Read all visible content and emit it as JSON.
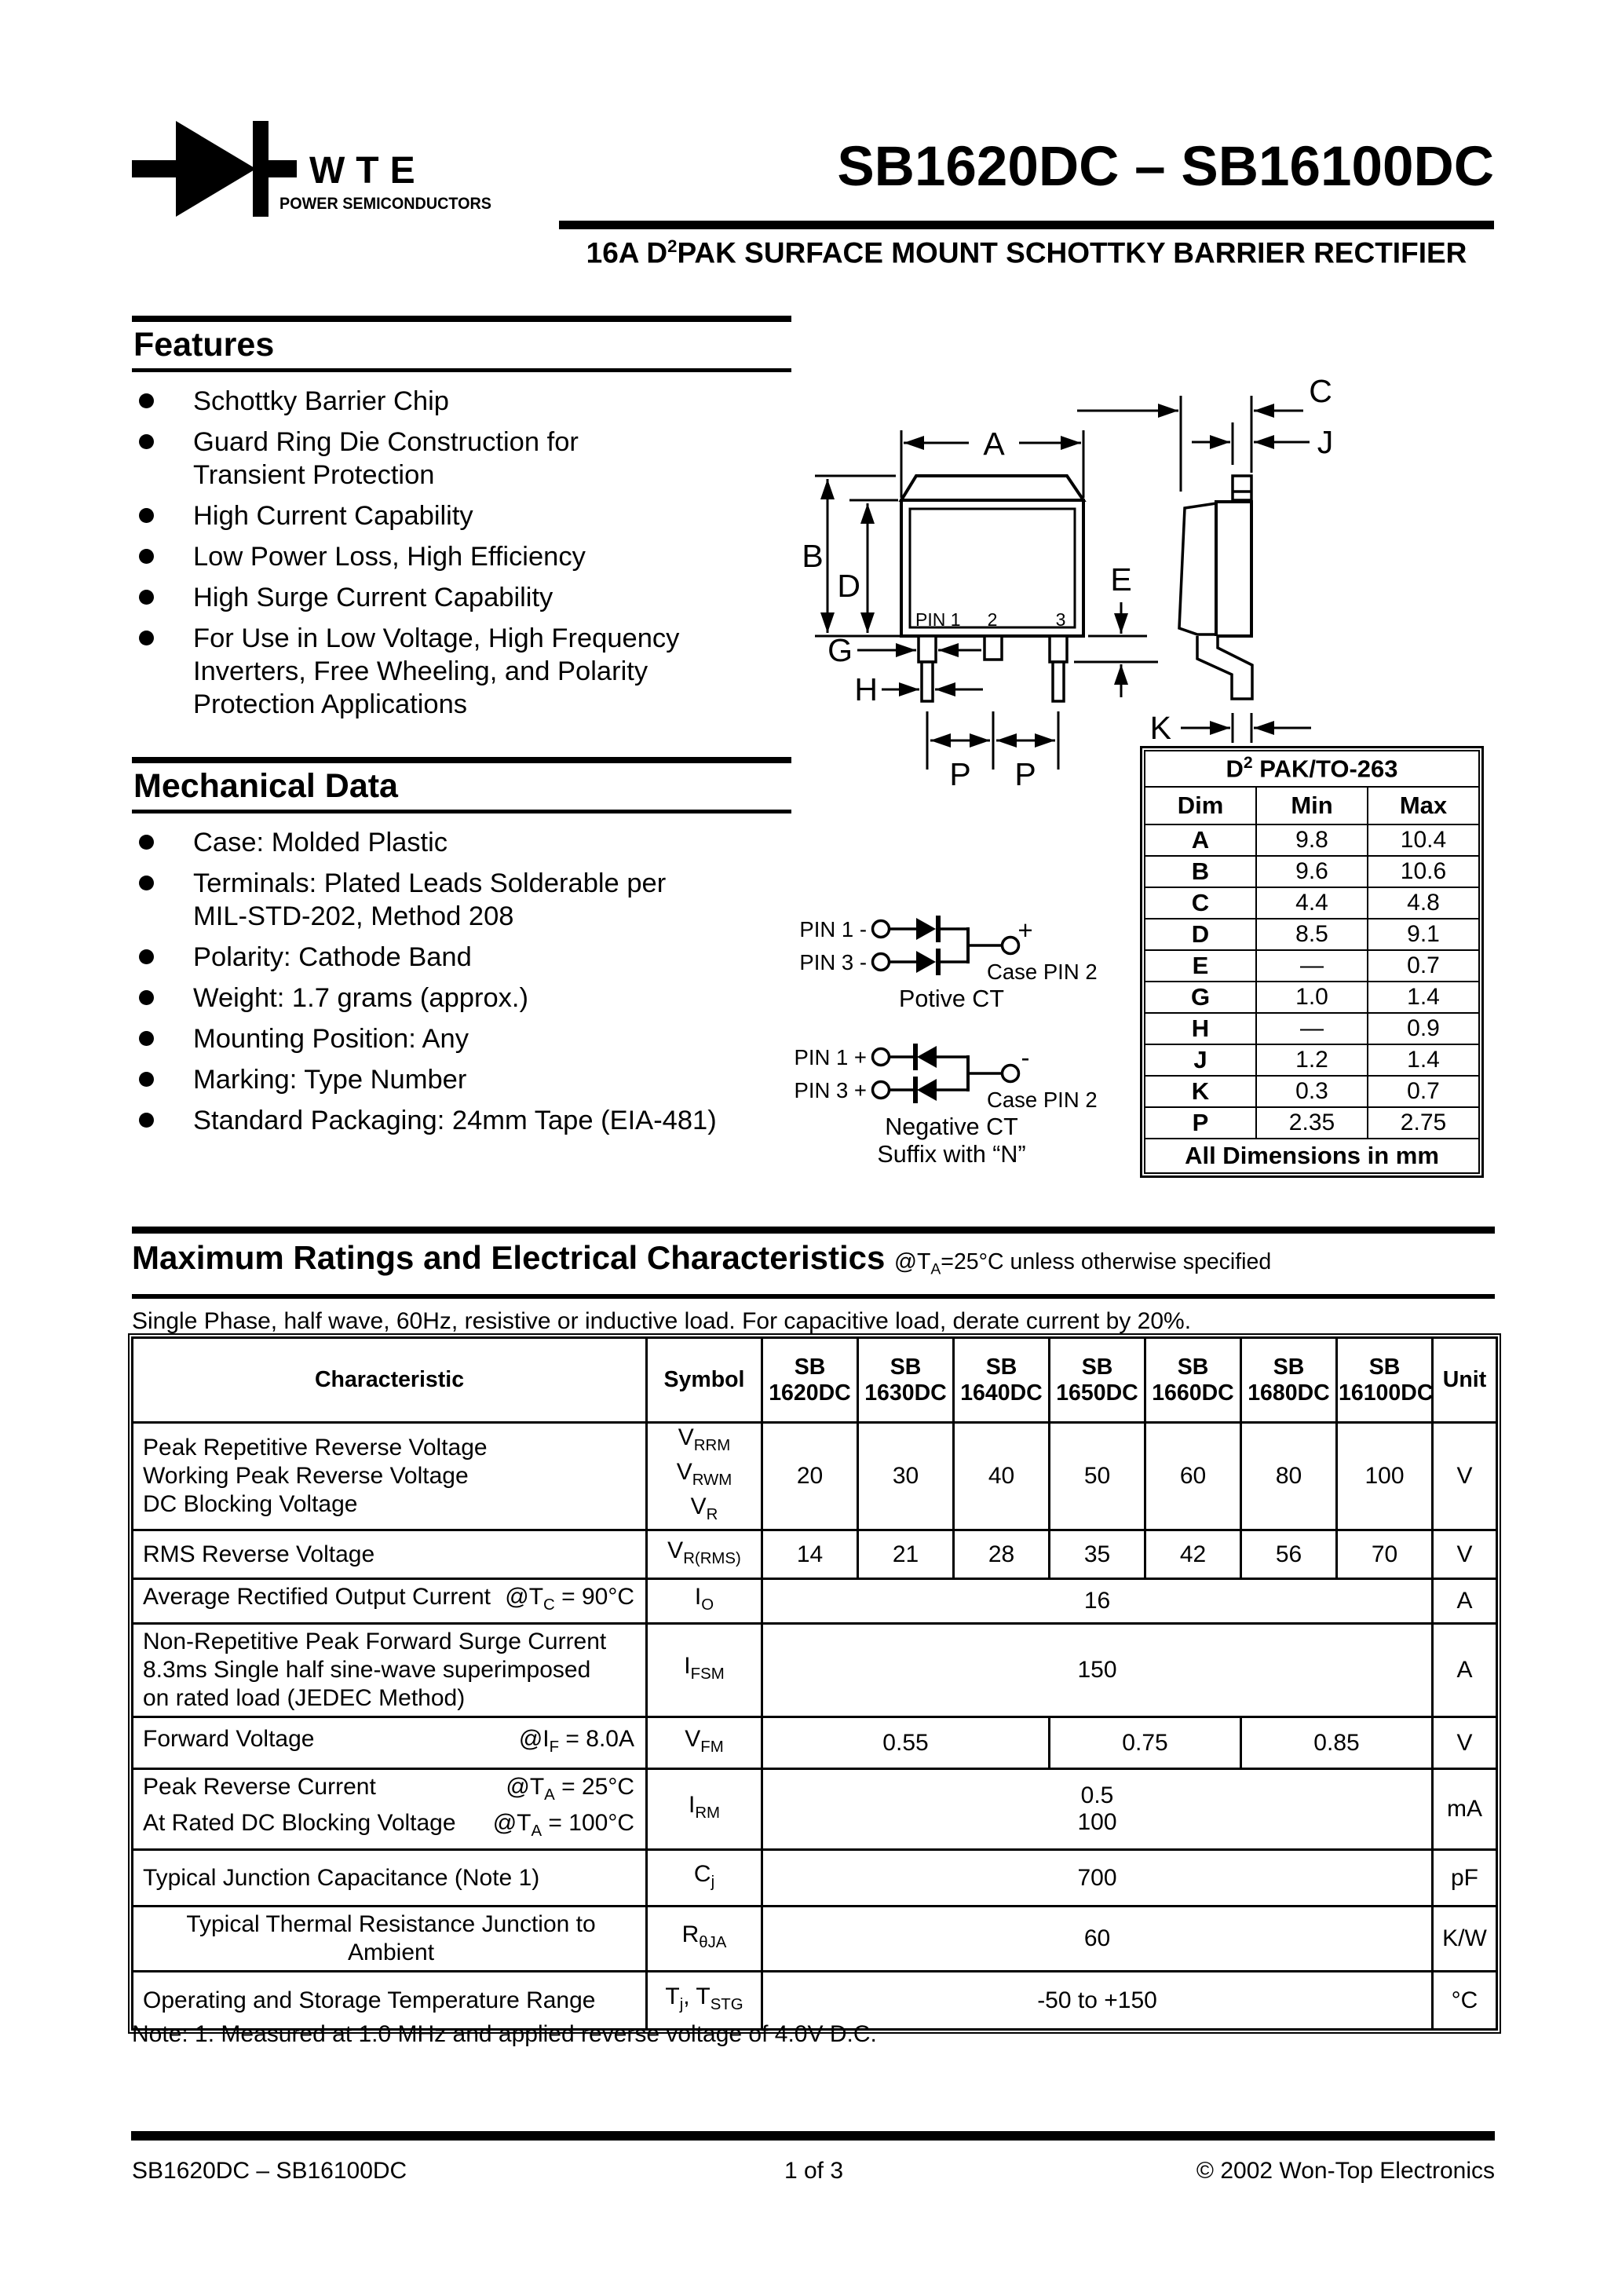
{
  "logo": {
    "brand": "WTE",
    "tagline": "POWER SEMICONDUCTORS"
  },
  "header": {
    "title": "SB1620DC – SB16100DC",
    "subtitle": "16A D^2^PAK SURFACE MOUNT SCHOTTKY BARRIER RECTIFIER"
  },
  "features": {
    "heading": "Features",
    "items": [
      "Schottky Barrier Chip",
      "Guard Ring Die Construction for\nTransient Protection",
      "High Current Capability",
      "Low Power Loss, High Efficiency",
      "High Surge Current Capability",
      "For Use in Low Voltage, High Frequency\nInverters, Free Wheeling, and Polarity\nProtection Applications"
    ]
  },
  "mechanical": {
    "heading": "Mechanical Data",
    "items": [
      "Case: Molded Plastic",
      "Terminals: Plated Leads Solderable per\nMIL-STD-202, Method 208",
      "Polarity: Cathode Band",
      "Weight: 1.7 grams (approx.)",
      "Mounting Position: Any",
      "Marking: Type Number",
      "Standard Packaging: 24mm Tape (EIA-481)"
    ]
  },
  "package_diagram": {
    "pins": {
      "pin1": "PIN 1",
      "pin2": "2",
      "pin3": "3"
    },
    "labels": {
      "a": "A",
      "b": "B",
      "c": "C",
      "d": "D",
      "e": "E",
      "g": "G",
      "h": "H",
      "j": "J",
      "k": "K",
      "p_left": "P",
      "p_right": "P"
    }
  },
  "dim_table": {
    "title": "D^2^ PAK/TO-263",
    "headers": [
      "Dim",
      "Min",
      "Max"
    ],
    "rows": [
      [
        "A",
        "9.8",
        "10.4"
      ],
      [
        "B",
        "9.6",
        "10.6"
      ],
      [
        "C",
        "4.4",
        "4.8"
      ],
      [
        "D",
        "8.5",
        "9.1"
      ],
      [
        "E",
        "—",
        "0.7"
      ],
      [
        "G",
        "1.0",
        "1.4"
      ],
      [
        "H",
        "—",
        "0.9"
      ],
      [
        "J",
        "1.2",
        "1.4"
      ],
      [
        "K",
        "0.3",
        "0.7"
      ],
      [
        "P",
        "2.35",
        "2.75"
      ]
    ],
    "footer": "All Dimensions in mm"
  },
  "ct": {
    "positive": {
      "pin1": "PIN 1 -",
      "pin3": "PIN 3 -",
      "sign": "+",
      "case_label": "Case PIN 2",
      "caption": "Potive CT"
    },
    "negative": {
      "pin1": "PIN 1 +",
      "pin3": "PIN 3 +",
      "sign": "-",
      "case_label": "Case PIN 2",
      "caption": "Negative CT",
      "caption2": "Suffix with “N”"
    }
  },
  "ratings": {
    "heading": "Maximum Ratings and Electrical Characteristics",
    "heading_cond": "@T~A~=25°C unless otherwise specified",
    "subnote": "Single Phase, half wave, 60Hz, resistive or inductive load. For capacitive load, derate current by 20%.",
    "note": "Note:  1. Measured at 1.0 MHz and applied reverse voltage of 4.0V D.C.",
    "table": {
      "char_header": "Characteristic",
      "symbol_header": "Symbol",
      "unit_header": "Unit",
      "product_headers": [
        "SB\n1620DC",
        "SB\n1630DC",
        "SB\n1640DC",
        "SB\n1650DC",
        "SB\n1660DC",
        "SB\n1680DC",
        "SB\n16100DC"
      ],
      "rows": [
        {
          "char": [
            {
              "t": "Peak Repetitive Reverse Voltage"
            },
            {
              "t": "Working Peak Reverse Voltage"
            },
            {
              "t": "DC Blocking Voltage"
            }
          ],
          "sym": "V~RRM~\nV~RWM~\nV~R~",
          "vals": [
            {
              "v": "20",
              "span": 1
            },
            {
              "v": "30",
              "span": 1
            },
            {
              "v": "40",
              "span": 1
            },
            {
              "v": "50",
              "span": 1
            },
            {
              "v": "60",
              "span": 1
            },
            {
              "v": "80",
              "span": 1
            },
            {
              "v": "100",
              "span": 1
            }
          ],
          "unit": "V"
        },
        {
          "char": [
            {
              "t": "RMS Reverse Voltage"
            }
          ],
          "sym": "V~R(RMS)~",
          "vals": [
            {
              "v": "14",
              "span": 1
            },
            {
              "v": "21",
              "span": 1
            },
            {
              "v": "28",
              "span": 1
            },
            {
              "v": "35",
              "span": 1
            },
            {
              "v": "42",
              "span": 1
            },
            {
              "v": "56",
              "span": 1
            },
            {
              "v": "70",
              "span": 1
            }
          ],
          "unit": "V"
        },
        {
          "char": [
            {
              "t": "Average Rectified Output Current",
              "c": "@T~C~ = 90°C"
            }
          ],
          "sym": "I~O~",
          "vals": [
            {
              "v": "16",
              "span": 7
            }
          ],
          "unit": "A"
        },
        {
          "char": [
            {
              "t": "Non-Repetitive Peak Forward Surge Current"
            },
            {
              "t": "8.3ms Single half sine-wave superimposed"
            },
            {
              "t": "on rated load (JEDEC Method)"
            }
          ],
          "sym": "I~FSM~",
          "vals": [
            {
              "v": "150",
              "span": 7
            }
          ],
          "unit": "A"
        },
        {
          "char": [
            {
              "t": "Forward Voltage",
              "c": "@I~F~ = 8.0A"
            }
          ],
          "sym": "V~FM~",
          "vals": [
            {
              "v": "0.55",
              "span": 3
            },
            {
              "v": "0.75",
              "span": 2
            },
            {
              "v": "0.85",
              "span": 2
            }
          ],
          "unit": "V"
        },
        {
          "char": [
            {
              "t": "Peak Reverse Current",
              "c": "@T~A~ = 25°C"
            },
            {
              "t": "At Rated DC Blocking Voltage",
              "c": "@T~A~ = 100°C"
            }
          ],
          "sym": "I~RM~",
          "vals": [
            {
              "v": "0.5\n100",
              "span": 7
            }
          ],
          "unit": "mA"
        },
        {
          "char": [
            {
              "t": "Typical Junction Capacitance (Note 1)"
            }
          ],
          "sym": "C~j~",
          "vals": [
            {
              "v": "700",
              "span": 7
            }
          ],
          "unit": "pF"
        },
        {
          "char": [
            {
              "t": "Typical Thermal Resistance Junction to Ambient"
            }
          ],
          "sym": "R~θJA~",
          "vals": [
            {
              "v": "60",
              "span": 7
            }
          ],
          "unit": "K/W"
        },
        {
          "char": [
            {
              "t": "Operating and Storage Temperature Range"
            }
          ],
          "sym": "T~j~, T~STG~",
          "vals": [
            {
              "v": "-50 to +150",
              "span": 7
            }
          ],
          "unit": "°C"
        }
      ]
    }
  },
  "footer": {
    "left": "SB1620DC – SB16100DC",
    "center": "1 of 3",
    "right": "© 2002 Won-Top Electronics"
  }
}
